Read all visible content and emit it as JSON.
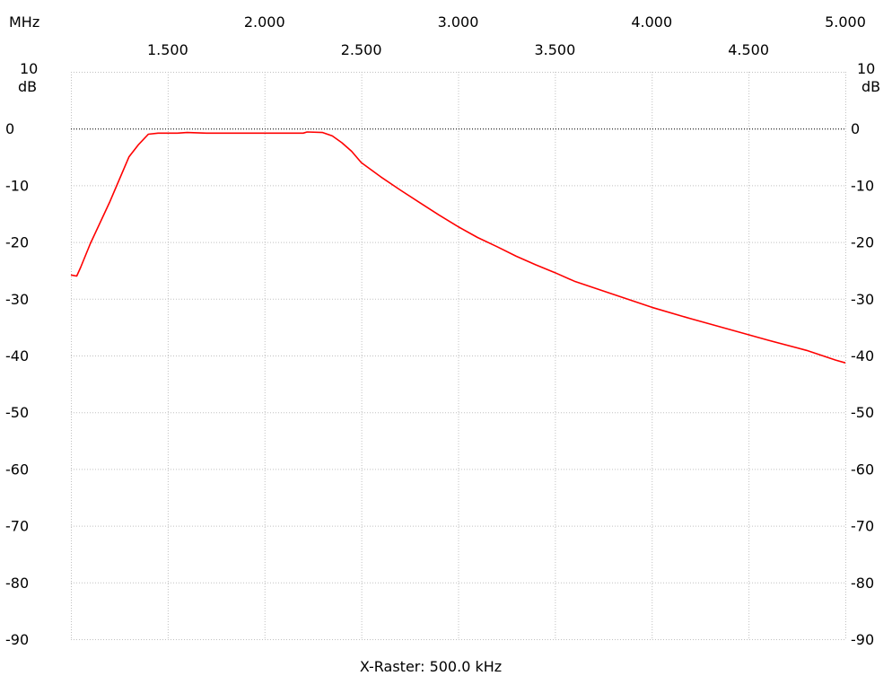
{
  "chart_data": {
    "type": "line",
    "x_unit_label": "MHz",
    "y_unit_label_left": [
      "10",
      "dB"
    ],
    "y_unit_label_right": [
      "10",
      "dB"
    ],
    "x_raster_label": "X-Raster: 500.0 kHz",
    "xlim": [
      1.0,
      5.0
    ],
    "ylim": [
      -90,
      10
    ],
    "xticks_top_row": [
      {
        "value": 2.0,
        "label": "2.000"
      },
      {
        "value": 3.0,
        "label": "3.000"
      },
      {
        "value": 4.0,
        "label": "4.000"
      },
      {
        "value": 5.0,
        "label": "5.000"
      }
    ],
    "xticks_bottom_row": [
      {
        "value": 1.5,
        "label": "1.500"
      },
      {
        "value": 2.5,
        "label": "2.500"
      },
      {
        "value": 3.5,
        "label": "3.500"
      },
      {
        "value": 4.5,
        "label": "4.500"
      }
    ],
    "yticks": [
      {
        "value": 0,
        "label": "0"
      },
      {
        "value": -10,
        "label": "-10"
      },
      {
        "value": -20,
        "label": "-20"
      },
      {
        "value": -30,
        "label": "-30"
      },
      {
        "value": -40,
        "label": "-40"
      },
      {
        "value": -50,
        "label": "-50"
      },
      {
        "value": -60,
        "label": "-60"
      },
      {
        "value": -70,
        "label": "-70"
      },
      {
        "value": -80,
        "label": "-80"
      },
      {
        "value": -90,
        "label": "-90"
      }
    ],
    "grid": true,
    "reference_line_db": 0,
    "colors": {
      "trace": "#ff0000",
      "grid": "#c0c0c0",
      "reference": "#000000",
      "text": "#000000"
    },
    "series": [
      {
        "x": [
          1.0,
          1.03,
          1.05,
          1.1,
          1.2,
          1.3,
          1.35,
          1.4,
          1.45,
          1.5,
          1.55,
          1.6,
          1.7,
          1.8,
          1.9,
          2.0,
          2.1,
          2.2,
          2.22,
          2.3,
          2.35,
          2.4,
          2.45,
          2.5,
          2.6,
          2.7,
          2.8,
          2.9,
          3.0,
          3.1,
          3.2,
          3.3,
          3.4,
          3.5,
          3.6,
          3.8,
          4.0,
          4.2,
          4.4,
          4.6,
          4.8,
          4.95,
          5.0
        ],
        "y": [
          -25.8,
          -26.0,
          -24.5,
          -20.3,
          -13.0,
          -5.0,
          -2.8,
          -1.0,
          -0.8,
          -0.8,
          -0.8,
          -0.7,
          -0.8,
          -0.8,
          -0.8,
          -0.8,
          -0.8,
          -0.8,
          -0.6,
          -0.7,
          -1.3,
          -2.5,
          -4.0,
          -6.0,
          -8.5,
          -10.8,
          -13.0,
          -15.2,
          -17.3,
          -19.2,
          -20.8,
          -22.5,
          -24.0,
          -25.4,
          -26.9,
          -29.2,
          -31.5,
          -33.5,
          -35.4,
          -37.3,
          -39.1,
          -40.8,
          -41.3
        ]
      }
    ]
  }
}
